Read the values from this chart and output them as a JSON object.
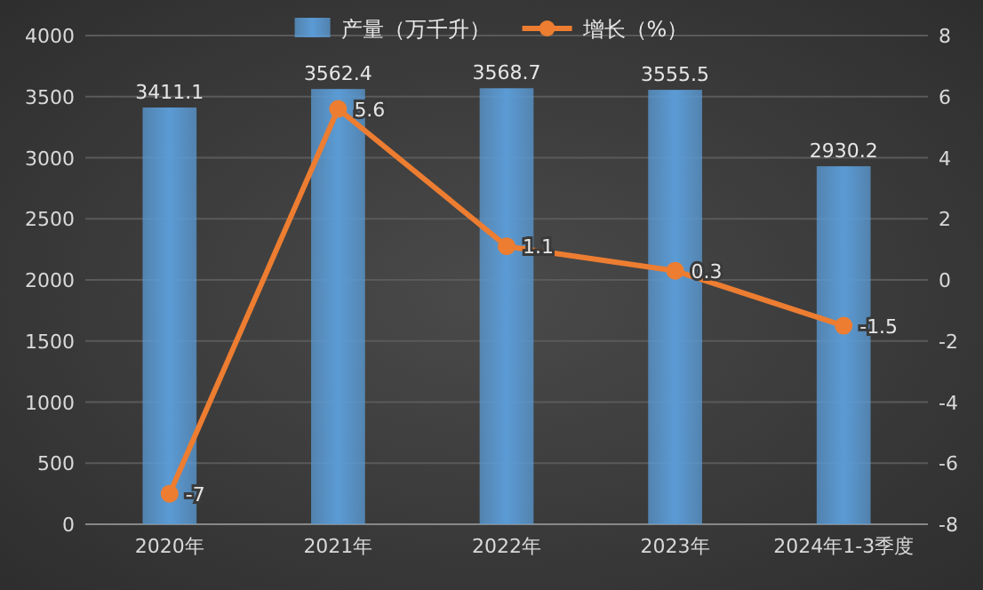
{
  "chart_data": {
    "type": "bar",
    "categories": [
      "2020年",
      "2021年",
      "2022年",
      "2023年",
      "2024年1-3季度"
    ],
    "series": [
      {
        "name": "产量（万千升）",
        "color": "#5b9bd5",
        "values": [
          3411.1,
          3562.4,
          3568.7,
          3555.5,
          2930.2
        ]
      },
      {
        "name": "增长（%）",
        "type": "line",
        "axis": "y2",
        "color": "#ed7d31",
        "values": [
          -7,
          5.6,
          1.1,
          0.3,
          -1.5
        ]
      }
    ],
    "ylim": [
      0,
      4000
    ],
    "yticks": [
      0,
      500,
      1000,
      1500,
      2000,
      2500,
      3000,
      3500,
      4000
    ],
    "y2lim": [
      -8,
      8
    ],
    "y2ticks": [
      -8,
      -6,
      -4,
      -2,
      0,
      2,
      4,
      6,
      8
    ],
    "data_labels": true,
    "grid": "y",
    "legend": "top",
    "marker": "circle"
  }
}
